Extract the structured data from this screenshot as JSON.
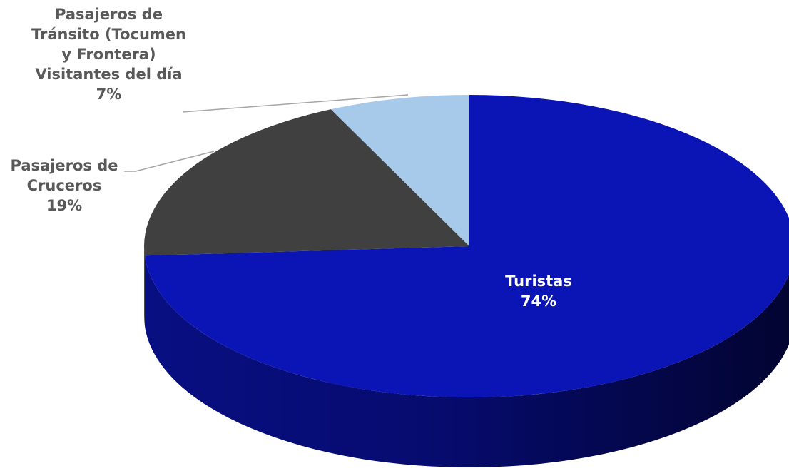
{
  "chart_data": {
    "type": "pie",
    "style": "3d",
    "title": "",
    "unit": "%",
    "slices": [
      {
        "label_lines": [
          "Turistas"
        ],
        "value": 74,
        "value_label": "74%",
        "color": "#0b14b4"
      },
      {
        "label_lines": [
          "Pasajeros de",
          "Cruceros"
        ],
        "value": 19,
        "value_label": "19%",
        "color": "#404040"
      },
      {
        "label_lines": [
          "Pasajeros de",
          "Tránsito (Tocumen",
          "y Frontera)",
          "Visitantes del día"
        ],
        "value": 7,
        "value_label": "7%",
        "color": "#a7c9ea"
      }
    ],
    "colors": {
      "label_text": "#595959",
      "inside_label_text": "#ffffff",
      "leader_line": "#a6a6a6"
    }
  }
}
